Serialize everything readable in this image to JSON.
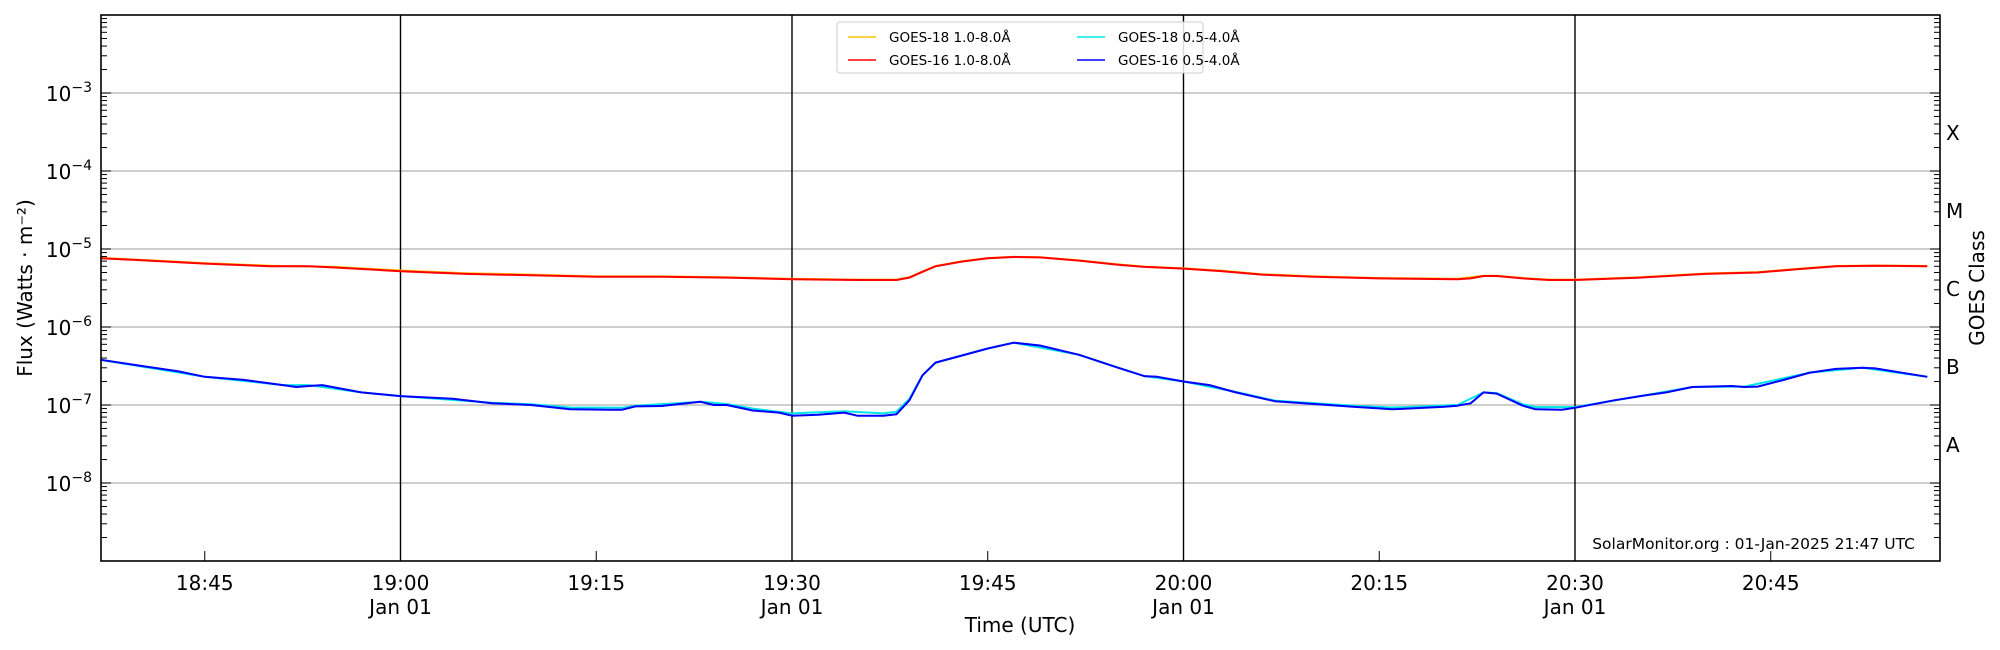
{
  "chart_data": {
    "type": "line",
    "title": "",
    "xlabel": "Time (UTC)",
    "ylabel": "Flux (Watts · m⁻²)",
    "ylabel_right": "GOES Class",
    "yscale": "log",
    "ylim": [
      1e-09,
      0.01
    ],
    "xlim": [
      "18:37",
      "20:58"
    ],
    "grid": "horizontal at decades",
    "y_ticks": [
      {
        "value": 0.001,
        "base": "10",
        "exp": "−3"
      },
      {
        "value": 0.0001,
        "base": "10",
        "exp": "−4"
      },
      {
        "value": 1e-05,
        "base": "10",
        "exp": "−5"
      },
      {
        "value": 1e-06,
        "base": "10",
        "exp": "−6"
      },
      {
        "value": 1e-07,
        "base": "10",
        "exp": "−7"
      },
      {
        "value": 1e-08,
        "base": "10",
        "exp": "−8"
      }
    ],
    "x_ticks": [
      {
        "time": "18:45",
        "label": "18:45",
        "sub": ""
      },
      {
        "time": "19:00",
        "label": "19:00",
        "sub": "Jan 01"
      },
      {
        "time": "19:15",
        "label": "19:15",
        "sub": ""
      },
      {
        "time": "19:30",
        "label": "19:30",
        "sub": "Jan 01"
      },
      {
        "time": "19:45",
        "label": "19:45",
        "sub": ""
      },
      {
        "time": "20:00",
        "label": "20:00",
        "sub": "Jan 01"
      },
      {
        "time": "20:15",
        "label": "20:15",
        "sub": ""
      },
      {
        "time": "20:30",
        "label": "20:30",
        "sub": "Jan 01"
      },
      {
        "time": "20:45",
        "label": "20:45",
        "sub": ""
      }
    ],
    "vertical_lines": [
      "19:00",
      "19:30",
      "20:00",
      "20:30"
    ],
    "goes_classes": [
      {
        "label": "X",
        "value": 0.000316
      },
      {
        "label": "M",
        "value": 3.16e-05
      },
      {
        "label": "C",
        "value": 3.16e-06
      },
      {
        "label": "B",
        "value": 3.16e-07
      },
      {
        "label": "A",
        "value": 3.16e-08
      }
    ],
    "legend_position": "top-center",
    "annotation": "SolarMonitor.org : 01-Jan-2025 21:47 UTC",
    "series": [
      {
        "name": "GOES-18 1.0-8.0Å",
        "color": "#ffc000",
        "x": [
          "18:37",
          "18:40",
          "18:45",
          "18:50",
          "18:55",
          "19:00",
          "19:05",
          "19:10",
          "19:15",
          "19:20",
          "19:25",
          "19:30",
          "19:35",
          "19:38",
          "19:39",
          "19:40",
          "19:41",
          "19:43",
          "19:45",
          "19:47",
          "19:49",
          "19:52",
          "19:55",
          "19:57",
          "20:00",
          "20:03",
          "20:06",
          "20:10",
          "20:15",
          "20:21",
          "20:23",
          "20:24",
          "20:26",
          "20:28",
          "20:30",
          "20:35",
          "20:40",
          "20:44",
          "20:47",
          "20:50",
          "20:53",
          "20:57"
        ],
        "y": [
          7.7e-06,
          7.3e-06,
          6.6e-06,
          6.1e-06,
          5.9e-06,
          5.3e-06,
          4.9e-06,
          4.7e-06,
          4.45e-06,
          4.45e-06,
          4.35e-06,
          4.15e-06,
          4.05e-06,
          4.05e-06,
          4.35e-06,
          5.15e-06,
          6.05e-06,
          6.95e-06,
          7.65e-06,
          7.95e-06,
          7.85e-06,
          7.15e-06,
          6.35e-06,
          5.95e-06,
          5.65e-06,
          5.25e-06,
          4.75e-06,
          4.45e-06,
          4.25e-06,
          4.15e-06,
          4.55e-06,
          4.55e-06,
          4.25e-06,
          4.05e-06,
          4.05e-06,
          4.35e-06,
          4.85e-06,
          5.05e-06,
          5.55e-06,
          6.05e-06,
          6.15e-06,
          6.05e-06
        ]
      },
      {
        "name": "GOES-16 1.0-8.0Å",
        "color": "#ff0000",
        "x": [
          "18:37",
          "18:40",
          "18:45",
          "18:50",
          "18:53",
          "18:55",
          "19:00",
          "19:05",
          "19:10",
          "19:15",
          "19:20",
          "19:25",
          "19:30",
          "19:35",
          "19:38",
          "19:39",
          "19:40",
          "19:41",
          "19:43",
          "19:45",
          "19:47",
          "19:49",
          "19:52",
          "19:55",
          "19:57",
          "20:00",
          "20:03",
          "20:06",
          "20:10",
          "20:15",
          "20:21",
          "20:22",
          "20:23",
          "20:24",
          "20:26",
          "20:28",
          "20:30",
          "20:35",
          "20:40",
          "20:44",
          "20:47",
          "20:50",
          "20:53",
          "20:57"
        ],
        "y": [
          7.6e-06,
          7.2e-06,
          6.5e-06,
          6e-06,
          6e-06,
          5.8e-06,
          5.2e-06,
          4.8e-06,
          4.6e-06,
          4.4e-06,
          4.4e-06,
          4.3e-06,
          4.1e-06,
          4e-06,
          4e-06,
          4.3e-06,
          5.1e-06,
          6e-06,
          6.9e-06,
          7.6e-06,
          7.9e-06,
          7.8e-06,
          7.1e-06,
          6.3e-06,
          5.9e-06,
          5.6e-06,
          5.2e-06,
          4.7e-06,
          4.4e-06,
          4.2e-06,
          4.1e-06,
          4.2e-06,
          4.5e-06,
          4.5e-06,
          4.2e-06,
          4e-06,
          4e-06,
          4.3e-06,
          4.8e-06,
          5e-06,
          5.5e-06,
          6e-06,
          6.1e-06,
          6e-06
        ]
      },
      {
        "name": "GOES-18 0.5-4.0Å",
        "color": "#00e5e5",
        "x": [
          "18:37",
          "18:45",
          "18:51",
          "18:53",
          "18:57",
          "19:00",
          "19:07",
          "19:10",
          "19:13",
          "19:17",
          "19:18",
          "19:23",
          "19:25",
          "19:27",
          "19:30",
          "19:34",
          "19:37",
          "19:38",
          "19:39",
          "19:40",
          "19:41",
          "19:45",
          "19:47",
          "19:52",
          "19:57",
          "20:00",
          "20:04",
          "20:07",
          "20:13",
          "20:16",
          "20:21",
          "20:23",
          "20:24",
          "20:26",
          "20:27",
          "20:30",
          "20:35",
          "20:39",
          "20:43",
          "20:48",
          "20:52",
          "20:57"
        ],
        "y": [
          3.8e-07,
          2.3e-07,
          1.8e-07,
          1.8e-07,
          1.45e-07,
          1.3e-07,
          1.07e-07,
          1.02e-07,
          9.3e-08,
          9.2e-08,
          9.8e-08,
          1.1e-07,
          1.03e-07,
          9e-08,
          7.8e-08,
          8.3e-08,
          7.8e-08,
          8.2e-08,
          1.2e-07,
          2.4e-07,
          3.5e-07,
          5.3e-07,
          6.3e-07,
          4.4e-07,
          2.35e-07,
          2e-07,
          1.47e-07,
          1.14e-07,
          9.8e-08,
          9.3e-08,
          1e-07,
          1.45e-07,
          1.42e-07,
          1.02e-07,
          9.4e-08,
          9.4e-08,
          1.3e-07,
          1.7e-07,
          1.72e-07,
          2.6e-07,
          3e-07,
          2.3e-07
        ]
      },
      {
        "name": "GOES-16 0.5-4.0Å",
        "color": "#0000ff",
        "x": [
          "18:37",
          "18:40",
          "18:43",
          "18:45",
          "18:48",
          "18:51",
          "18:52",
          "18:53",
          "18:54",
          "18:57",
          "19:00",
          "19:04",
          "19:07",
          "19:10",
          "19:13",
          "19:16",
          "19:17",
          "19:18",
          "19:20",
          "19:23",
          "19:24",
          "19:25",
          "19:27",
          "19:29",
          "19:30",
          "19:32",
          "19:34",
          "19:35",
          "19:37",
          "19:38",
          "19:39",
          "19:40",
          "19:41",
          "19:43",
          "19:45",
          "19:47",
          "19:49",
          "19:52",
          "19:55",
          "19:57",
          "19:58",
          "20:00",
          "20:02",
          "20:04",
          "20:07",
          "20:10",
          "20:13",
          "20:16",
          "20:20",
          "20:21",
          "20:22",
          "20:23",
          "20:24",
          "20:26",
          "20:27",
          "20:29",
          "20:30",
          "20:33",
          "20:35",
          "20:37",
          "20:39",
          "20:42",
          "20:43",
          "20:44",
          "20:46",
          "20:48",
          "20:50",
          "20:52",
          "20:53",
          "20:57"
        ],
        "y": [
          3.8e-07,
          3.2e-07,
          2.7e-07,
          2.3e-07,
          2.1e-07,
          1.8e-07,
          1.7e-07,
          1.75e-07,
          1.8e-07,
          1.45e-07,
          1.3e-07,
          1.2e-07,
          1.05e-07,
          1e-07,
          8.8e-08,
          8.7e-08,
          8.7e-08,
          9.6e-08,
          9.7e-08,
          1.1e-07,
          1e-07,
          1e-07,
          8.5e-08,
          8e-08,
          7.3e-08,
          7.5e-08,
          8e-08,
          7.3e-08,
          7.3e-08,
          7.6e-08,
          1.15e-07,
          2.4e-07,
          3.5e-07,
          4.3e-07,
          5.3e-07,
          6.3e-07,
          5.8e-07,
          4.4e-07,
          3e-07,
          2.35e-07,
          2.3e-07,
          2e-07,
          1.8e-07,
          1.45e-07,
          1.12e-07,
          1.03e-07,
          9.5e-08,
          8.8e-08,
          9.5e-08,
          9.8e-08,
          1.05e-07,
          1.45e-07,
          1.4e-07,
          9.8e-08,
          8.8e-08,
          8.7e-08,
          9.2e-08,
          1.15e-07,
          1.3e-07,
          1.45e-07,
          1.7e-07,
          1.75e-07,
          1.7e-07,
          1.72e-07,
          2.1e-07,
          2.6e-07,
          2.9e-07,
          3e-07,
          2.95e-07,
          2.3e-07
        ]
      }
    ]
  }
}
